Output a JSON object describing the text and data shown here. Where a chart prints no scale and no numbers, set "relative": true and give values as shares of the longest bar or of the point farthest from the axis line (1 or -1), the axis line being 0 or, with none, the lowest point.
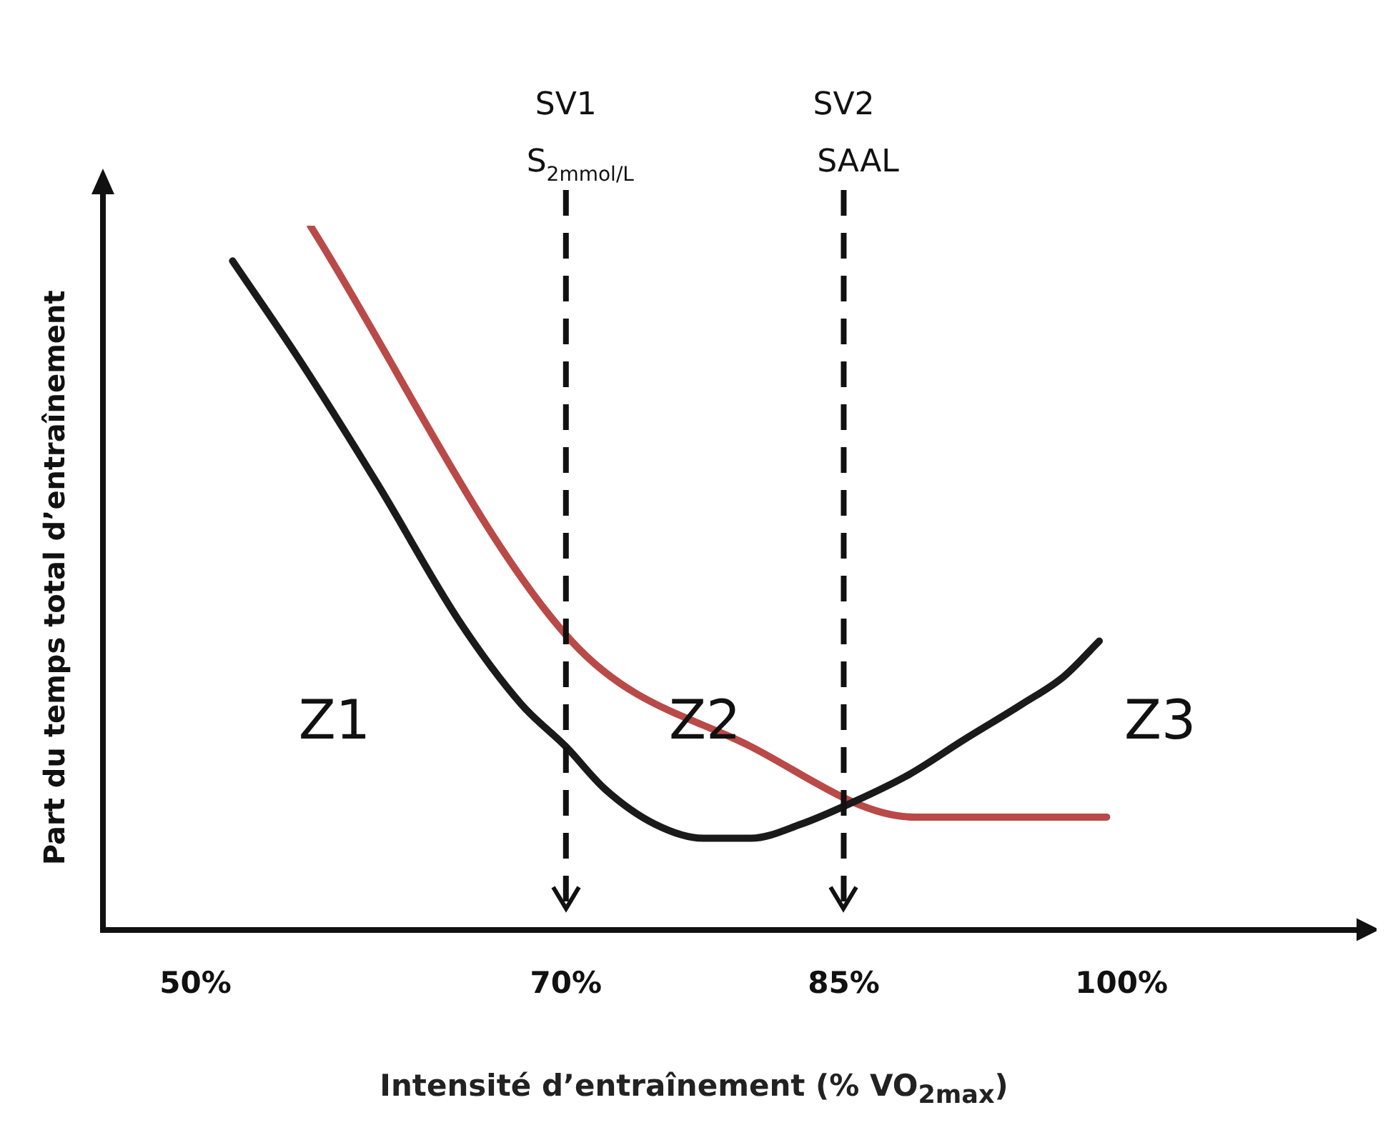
{
  "chart_data": {
    "type": "line",
    "relative": true,
    "xlabel": "Intensité d’entraînement (% VO$_{2max}$)",
    "ylabel": "Part du temps total d’entraînement",
    "xlim": [
      45,
      113
    ],
    "xticks": [
      {
        "value": 50,
        "label": "50%"
      },
      {
        "value": 70,
        "label": "70%"
      },
      {
        "value": 85,
        "label": "85%"
      },
      {
        "value": 100,
        "label": "100%"
      }
    ],
    "series": [
      {
        "color": "#1a1a1a",
        "x": [
          52,
          55.6,
          59.9,
          64.2,
          67.6,
          70,
          72.1,
          74.8,
          77.4,
          80,
          82.7,
          85.4,
          88.5,
          91.5,
          94.6,
          96.9,
          98.8
        ],
        "values": [
          0.95,
          0.81,
          0.63,
          0.44,
          0.32,
          0.26,
          0.2,
          0.15,
          0.13,
          0.13,
          0.15,
          0.18,
          0.22,
          0.27,
          0.32,
          0.36,
          0.41
        ]
      },
      {
        "color": "#b94a48",
        "x": [
          56.2,
          70.3,
          80,
          88.8,
          99.2
        ],
        "values": [
          1,
          0.41,
          0.26,
          0.16,
          0.16
        ]
      }
    ],
    "ref_lines": [
      {
        "axis": "x",
        "value": 70,
        "label": "SV1",
        "line_style": "dashed"
      },
      {
        "axis": "x",
        "value": 85,
        "label": "SV2",
        "line_style": "dashed"
      }
    ],
    "annotations": [
      "S$_{2mmol/L}$",
      "SAAL",
      "Z1",
      "Z2",
      "Z3"
    ],
    "grid": false,
    "legend": false,
    "marker": "none",
    "line_style": "solid"
  }
}
